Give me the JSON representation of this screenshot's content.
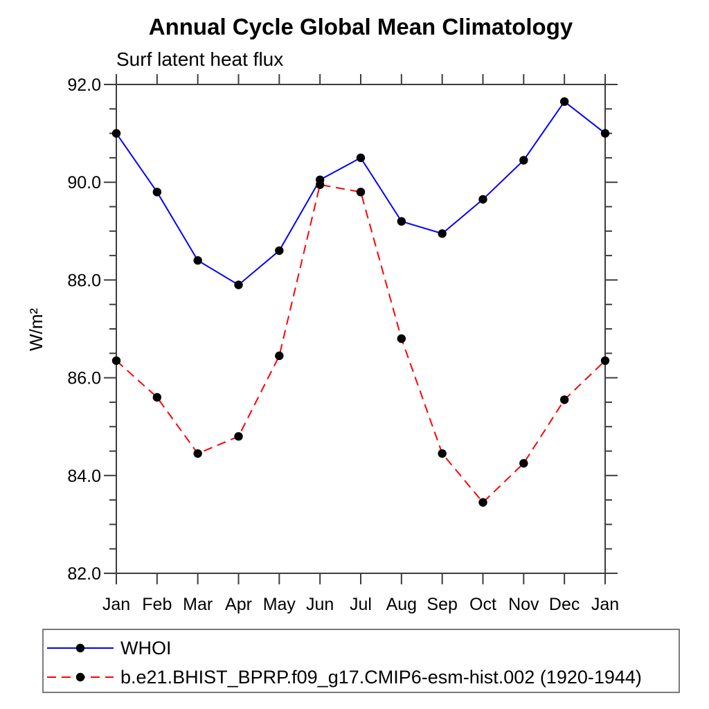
{
  "chart_data": {
    "type": "line",
    "title": "Annual Cycle Global Mean Climatology",
    "subtitle": "Surf latent heat flux",
    "ylabel": "W/m²",
    "xlabel": "",
    "categories": [
      "Jan",
      "Feb",
      "Mar",
      "Apr",
      "May",
      "Jun",
      "Jul",
      "Aug",
      "Sep",
      "Oct",
      "Nov",
      "Dec",
      "Jan"
    ],
    "series": [
      {
        "name": "WHOI",
        "color": "#0000ff",
        "line_style": "solid",
        "marker": "filled-circle",
        "values": [
          91.0,
          89.8,
          88.4,
          87.9,
          88.6,
          90.05,
          90.5,
          89.2,
          88.95,
          89.65,
          90.45,
          91.65,
          91.0
        ]
      },
      {
        "name": "b.e21.BHIST_BPRP.f09_g17.CMIP6-esm-hist.002 (1920-1944)",
        "color": "#ff0000",
        "line_style": "dashed",
        "marker": "filled-circle",
        "values": [
          86.35,
          85.6,
          84.45,
          84.8,
          86.45,
          89.95,
          89.8,
          86.8,
          84.45,
          83.45,
          84.25,
          85.55,
          86.35
        ]
      }
    ],
    "ylim": [
      82,
      92
    ],
    "yticks_major": [
      92,
      90,
      88,
      86,
      84,
      82
    ],
    "ytick_labels": [
      "92.0",
      "90.0",
      "88.0",
      "86.0",
      "84.0",
      "82.0"
    ],
    "ytick_minor_step": 0.5,
    "marker_color": "#000000",
    "axis_color": "#3c3c3c",
    "grid": false,
    "legend_position": "bottom-left"
  }
}
